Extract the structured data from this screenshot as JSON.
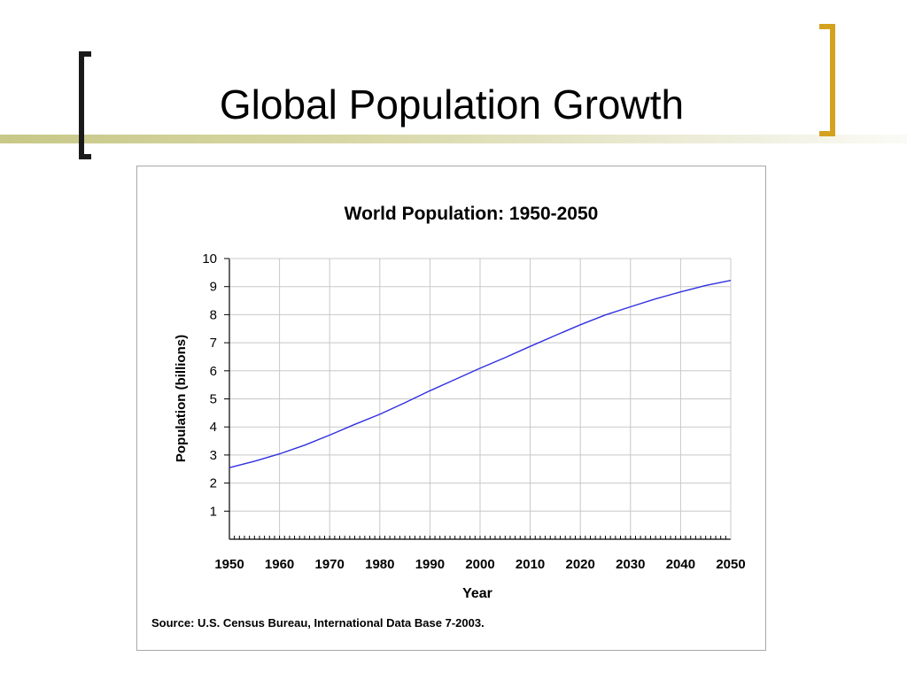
{
  "slide": {
    "title": "Global Population Growth"
  },
  "colors": {
    "accent_line": "#c8c888",
    "bracket_left": "#1a1a1a",
    "bracket_right": "#d4a21f",
    "series_line": "#3030e0",
    "grid": "#c8c8c8"
  },
  "chart_data": {
    "type": "line",
    "title": "World Population: 1950-2050",
    "xlabel": "Year",
    "ylabel": "Population (billions)",
    "xlim": [
      1950,
      2050
    ],
    "ylim": [
      0,
      10
    ],
    "x_ticks": [
      1950,
      1960,
      1970,
      1980,
      1990,
      2000,
      2010,
      2020,
      2030,
      2040,
      2050
    ],
    "y_ticks": [
      1,
      2,
      3,
      4,
      5,
      6,
      7,
      8,
      9,
      10
    ],
    "grid": true,
    "legend": "none",
    "source": "Source: U.S. Census Bureau, International Data Base 7-2003.",
    "series": [
      {
        "x": [
          1950,
          1955,
          1960,
          1965,
          1970,
          1975,
          1980,
          1985,
          1990,
          1995,
          2000,
          2005,
          2010,
          2015,
          2020,
          2025,
          2030,
          2035,
          2040,
          2045,
          2050
        ],
        "values": [
          2.55,
          2.78,
          3.04,
          3.35,
          3.71,
          4.09,
          4.45,
          4.86,
          5.29,
          5.69,
          6.09,
          6.47,
          6.87,
          7.26,
          7.64,
          7.99,
          8.28,
          8.56,
          8.81,
          9.04,
          9.22
        ]
      }
    ]
  }
}
